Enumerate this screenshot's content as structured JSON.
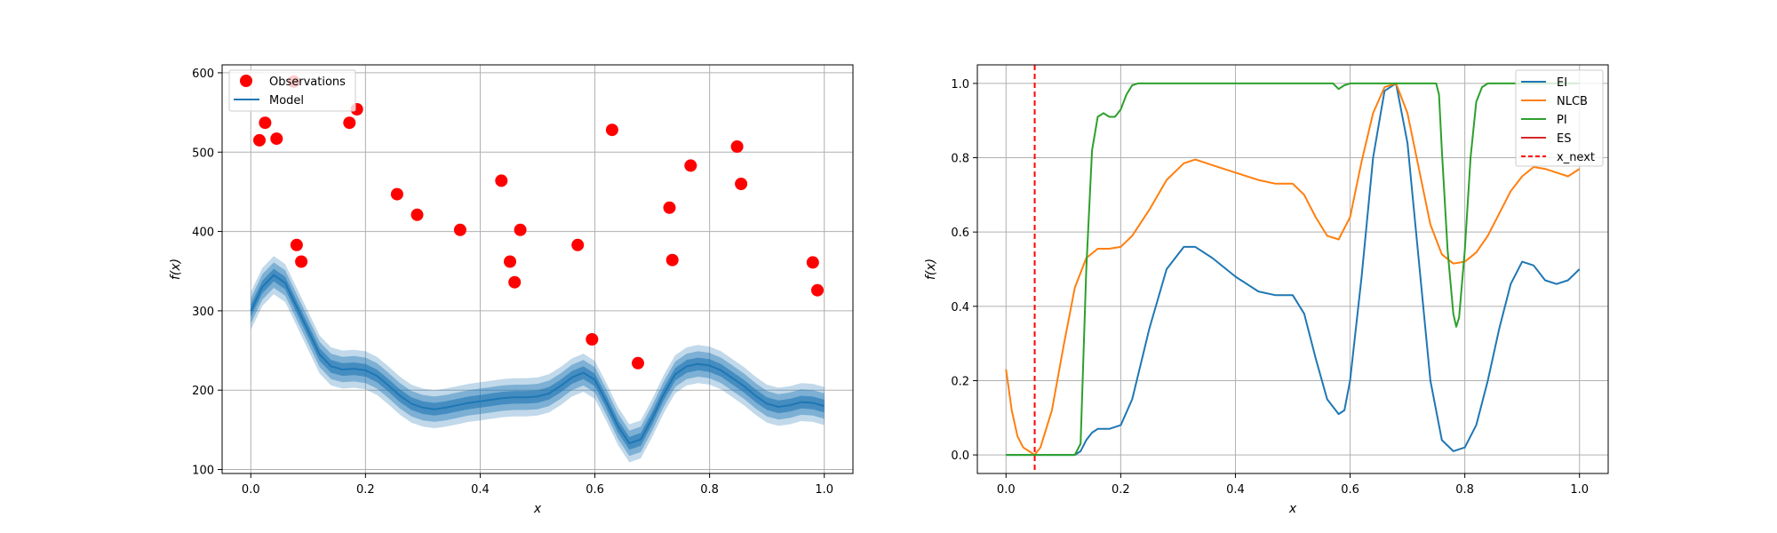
{
  "chart_data": [
    {
      "type": "scatter",
      "title": "",
      "xlabel": "x",
      "ylabel": "f(x)",
      "xlim": [
        -0.05,
        1.05
      ],
      "ylim": [
        95,
        610
      ],
      "xticks": [
        "0.0",
        "0.2",
        "0.4",
        "0.6",
        "0.8",
        "1.0"
      ],
      "yticks": [
        "100",
        "200",
        "300",
        "400",
        "500",
        "600"
      ],
      "xtick_values": [
        0,
        0.2,
        0.4,
        0.6,
        0.8,
        1.0
      ],
      "ytick_values": [
        100,
        200,
        300,
        400,
        500,
        600
      ],
      "grid": true,
      "legend": {
        "placement": "top-left",
        "entries": [
          "Observations",
          "Model"
        ]
      },
      "colors": {
        "observations": "#ff0000",
        "model": "#1f77b4"
      },
      "observations": {
        "name": "Observations",
        "x": [
          0.015,
          0.025,
          0.045,
          0.075,
          0.08,
          0.088,
          0.172,
          0.185,
          0.255,
          0.29,
          0.365,
          0.437,
          0.452,
          0.46,
          0.47,
          0.57,
          0.595,
          0.63,
          0.675,
          0.73,
          0.735,
          0.767,
          0.848,
          0.855,
          0.98,
          0.988
        ],
        "y": [
          515,
          537,
          517,
          589,
          383,
          362,
          537,
          554,
          447,
          421,
          402,
          464,
          362,
          336,
          402,
          383,
          264,
          528,
          234,
          430,
          364,
          483,
          507,
          460,
          361,
          326
        ]
      },
      "model": {
        "name": "Model",
        "x": [
          0.0,
          0.02,
          0.04,
          0.06,
          0.08,
          0.1,
          0.12,
          0.14,
          0.16,
          0.18,
          0.2,
          0.22,
          0.24,
          0.26,
          0.28,
          0.3,
          0.32,
          0.34,
          0.36,
          0.38,
          0.4,
          0.42,
          0.44,
          0.46,
          0.48,
          0.5,
          0.52,
          0.54,
          0.56,
          0.58,
          0.6,
          0.62,
          0.64,
          0.66,
          0.68,
          0.7,
          0.72,
          0.74,
          0.76,
          0.78,
          0.8,
          0.82,
          0.84,
          0.86,
          0.88,
          0.9,
          0.92,
          0.94,
          0.96,
          0.98,
          1.0
        ],
        "y": [
          300,
          330,
          345,
          335,
          305,
          275,
          245,
          230,
          226,
          227,
          225,
          218,
          206,
          193,
          183,
          178,
          176,
          178,
          181,
          184,
          186,
          188,
          190,
          191,
          191,
          192,
          196,
          205,
          216,
          222,
          213,
          185,
          155,
          133,
          138,
          165,
          195,
          220,
          230,
          233,
          231,
          225,
          215,
          205,
          193,
          183,
          179,
          181,
          185,
          184,
          180
        ],
        "band_widths": [
          8,
          16,
          24
        ]
      }
    },
    {
      "type": "line",
      "title": "",
      "xlabel": "x",
      "ylabel": "f(x)",
      "xlim": [
        -0.05,
        1.05
      ],
      "ylim": [
        -0.05,
        1.05
      ],
      "xticks": [
        "0.0",
        "0.2",
        "0.4",
        "0.6",
        "0.8",
        "1.0"
      ],
      "yticks": [
        "0.0",
        "0.2",
        "0.4",
        "0.6",
        "0.8",
        "1.0"
      ],
      "xtick_values": [
        0,
        0.2,
        0.4,
        0.6,
        0.8,
        1.0
      ],
      "ytick_values": [
        0,
        0.2,
        0.4,
        0.6,
        0.8,
        1.0
      ],
      "grid": true,
      "legend": {
        "placement": "top-right",
        "entries": [
          "EI",
          "NLCB",
          "PI",
          "ES",
          "x_next"
        ]
      },
      "series": [
        {
          "name": "EI",
          "color": "#1f77b4",
          "x": [
            0,
            0.12,
            0.13,
            0.14,
            0.15,
            0.16,
            0.18,
            0.2,
            0.22,
            0.25,
            0.28,
            0.31,
            0.33,
            0.36,
            0.4,
            0.44,
            0.47,
            0.5,
            0.52,
            0.54,
            0.56,
            0.58,
            0.59,
            0.6,
            0.62,
            0.64,
            0.66,
            0.68,
            0.7,
            0.72,
            0.74,
            0.76,
            0.78,
            0.8,
            0.82,
            0.84,
            0.86,
            0.88,
            0.9,
            0.92,
            0.94,
            0.96,
            0.98,
            1.0
          ],
          "y": [
            0,
            0,
            0.01,
            0.04,
            0.06,
            0.07,
            0.07,
            0.08,
            0.15,
            0.34,
            0.5,
            0.56,
            0.56,
            0.53,
            0.48,
            0.44,
            0.43,
            0.43,
            0.38,
            0.26,
            0.15,
            0.11,
            0.12,
            0.2,
            0.48,
            0.8,
            0.98,
            1.0,
            0.84,
            0.52,
            0.2,
            0.04,
            0.01,
            0.02,
            0.08,
            0.2,
            0.34,
            0.46,
            0.52,
            0.51,
            0.47,
            0.46,
            0.47,
            0.5
          ]
        },
        {
          "name": "NLCB",
          "color": "#ff7f0e",
          "x": [
            0,
            0.01,
            0.02,
            0.03,
            0.04,
            0.05,
            0.06,
            0.08,
            0.1,
            0.12,
            0.14,
            0.16,
            0.18,
            0.2,
            0.22,
            0.25,
            0.28,
            0.31,
            0.33,
            0.36,
            0.4,
            0.44,
            0.47,
            0.5,
            0.52,
            0.54,
            0.56,
            0.58,
            0.6,
            0.62,
            0.64,
            0.66,
            0.68,
            0.7,
            0.72,
            0.74,
            0.76,
            0.78,
            0.8,
            0.82,
            0.84,
            0.86,
            0.88,
            0.9,
            0.92,
            0.94,
            0.96,
            0.98,
            1.0
          ],
          "y": [
            0.23,
            0.12,
            0.05,
            0.02,
            0.01,
            0.0,
            0.02,
            0.12,
            0.29,
            0.45,
            0.53,
            0.555,
            0.555,
            0.56,
            0.59,
            0.66,
            0.74,
            0.785,
            0.795,
            0.78,
            0.76,
            0.74,
            0.73,
            0.73,
            0.7,
            0.64,
            0.59,
            0.58,
            0.64,
            0.79,
            0.92,
            0.99,
            1.0,
            0.92,
            0.77,
            0.62,
            0.54,
            0.515,
            0.52,
            0.545,
            0.59,
            0.65,
            0.71,
            0.75,
            0.775,
            0.77,
            0.76,
            0.75,
            0.77
          ]
        },
        {
          "name": "PI",
          "color": "#2ca02c",
          "x": [
            0,
            0.12,
            0.13,
            0.14,
            0.15,
            0.16,
            0.17,
            0.18,
            0.19,
            0.2,
            0.21,
            0.22,
            0.23,
            0.3,
            0.4,
            0.5,
            0.57,
            0.58,
            0.59,
            0.6,
            0.65,
            0.7,
            0.75,
            0.755,
            0.76,
            0.77,
            0.78,
            0.785,
            0.79,
            0.8,
            0.81,
            0.82,
            0.83,
            0.84,
            0.85,
            0.9,
            1.0
          ],
          "y": [
            0,
            0,
            0.03,
            0.5,
            0.82,
            0.91,
            0.92,
            0.91,
            0.91,
            0.93,
            0.97,
            0.995,
            1.0,
            1.0,
            1.0,
            1.0,
            1.0,
            0.985,
            0.995,
            1.0,
            1.0,
            1.0,
            1.0,
            0.97,
            0.82,
            0.55,
            0.38,
            0.345,
            0.37,
            0.55,
            0.8,
            0.95,
            0.99,
            1.0,
            1.0,
            1.0,
            1.0
          ]
        }
      ],
      "es": {
        "name": "ES",
        "color": "#d62728"
      },
      "x_next": {
        "name": "x_next",
        "x": 0.05,
        "color": "#ff0000"
      }
    }
  ]
}
